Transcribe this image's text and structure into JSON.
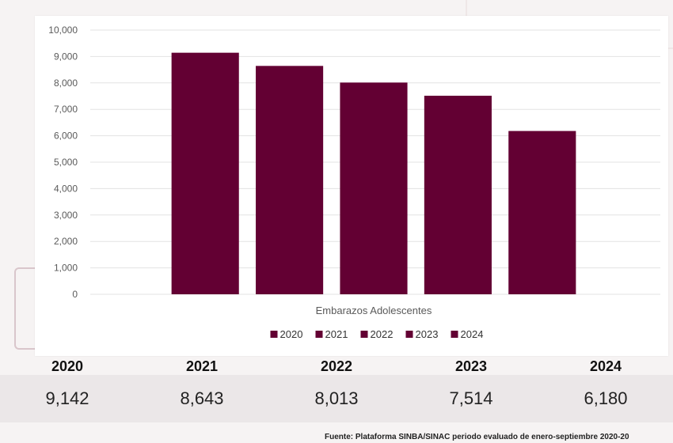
{
  "chart_data": {
    "type": "bar",
    "xlabel": "Embarazos Adolescentes",
    "ylim": [
      0,
      10000
    ],
    "yticks": [
      "10,000",
      "9,000",
      "8,000",
      "7,000",
      "6,000",
      "5,000",
      "4,000",
      "3,000",
      "2,000",
      "1,000",
      "0"
    ],
    "categories": [
      "Embarazos Adolescentes"
    ],
    "series": [
      {
        "name": "2020",
        "values": [
          9142
        ]
      },
      {
        "name": "2021",
        "values": [
          8643
        ]
      },
      {
        "name": "2022",
        "values": [
          8013
        ]
      },
      {
        "name": "2023",
        "values": [
          7514
        ]
      },
      {
        "name": "2024",
        "values": [
          6180
        ]
      }
    ],
    "bar_color": "#630033",
    "grid": true,
    "legend_position": "bottom"
  },
  "table": {
    "headers": [
      "2020",
      "2021",
      "2022",
      "2023",
      "2024"
    ],
    "values": [
      "9,142",
      "8,643",
      "8,013",
      "7,514",
      "6,180"
    ]
  },
  "source": "Fuente: Plataforma SINBA/SINAC periodo evaluado de enero-septiembre 2020-20"
}
